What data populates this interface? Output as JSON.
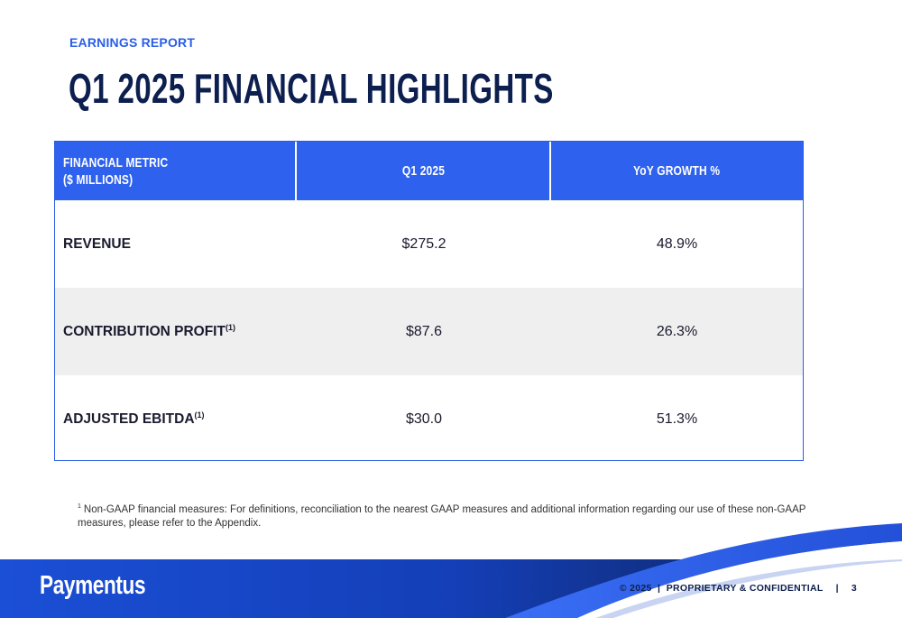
{
  "header": {
    "eyebrow": "EARNINGS REPORT",
    "title": "Q1 2025 FINANCIAL HIGHLIGHTS"
  },
  "table": {
    "columns": {
      "metric_line1": "FINANCIAL METRIC",
      "metric_line2": "($ MILLIONS)",
      "period": "Q1 2025",
      "growth": "YoY GROWTH %"
    },
    "rows": [
      {
        "metric": "REVENUE",
        "sup": "",
        "value": "$275.2",
        "growth": "48.9%"
      },
      {
        "metric": "CONTRIBUTION PROFIT",
        "sup": "(1)",
        "value": "$87.6",
        "growth": "26.3%"
      },
      {
        "metric": "ADJUSTED EBITDA",
        "sup": "(1)",
        "value": "$30.0",
        "growth": "51.3%"
      }
    ]
  },
  "footnote": {
    "marker": "1",
    "text": "Non-GAAP financial measures: For definitions, reconciliation to the nearest GAAP measures and additional information regarding our use of these non-GAAP measures, please refer to the Appendix."
  },
  "footer": {
    "logo": "Paymentus",
    "copyright": "© 2025",
    "label": "PROPRIETARY & CONFIDENTIAL",
    "page_number": "3"
  },
  "colors": {
    "accent": "#2e62ee",
    "navy": "#0d1f4f",
    "row_alt": "#efefef"
  }
}
